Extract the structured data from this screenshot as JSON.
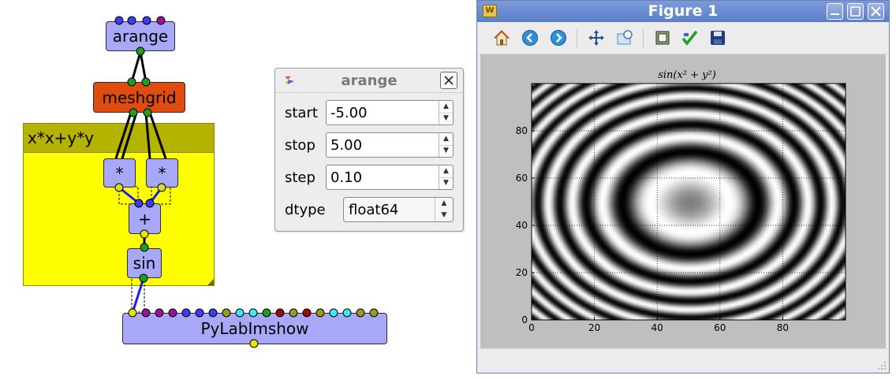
{
  "flow": {
    "nodes": {
      "arange": "arange",
      "meshgrid": "meshgrid",
      "mult1": "*",
      "mult2": "*",
      "add": "+",
      "sin": "sin",
      "imshow": "PyLabImshow"
    },
    "group_label": "x*x+y*y",
    "colors": {
      "node": "#a8a8f8",
      "node_orange": "#e04b10",
      "group_body": "#ffff00",
      "group_header": "#b4b400",
      "port_blue": "#3c3cf0",
      "port_purple": "#9a149a",
      "port_green": "#1e9e1e",
      "port_yellow": "#e6e600",
      "port_olive": "#9a9a20",
      "port_cyan": "#40e8f0",
      "port_darkred": "#9a0a0a"
    }
  },
  "arange_dialog": {
    "title": "arange",
    "fields": [
      {
        "label": "start",
        "value": "-5.00"
      },
      {
        "label": "stop",
        "value": "5.00"
      },
      {
        "label": "step",
        "value": "0.10"
      }
    ],
    "dtype": {
      "label": "dtype",
      "value": "float64"
    }
  },
  "figure": {
    "window_title": "Figure 1",
    "toolbar_icons": [
      "home-icon",
      "back-icon",
      "forward-icon",
      "pan-icon",
      "zoom-icon",
      "subplots-icon",
      "edit-icon",
      "save-icon"
    ],
    "chart_data": {
      "type": "heatmap",
      "title": "sin(x² + y²)",
      "function": "sin(x^2+y^2)",
      "x_ticks": [
        "0",
        "20",
        "40",
        "60",
        "80"
      ],
      "y_ticks": [
        "0",
        "20",
        "40",
        "60",
        "80"
      ],
      "xlim": [
        0,
        100
      ],
      "ylim": [
        100,
        0
      ],
      "grid": true,
      "colormap": "gray"
    }
  }
}
